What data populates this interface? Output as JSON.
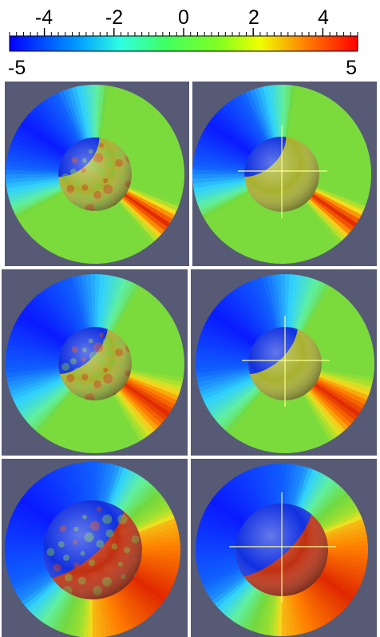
{
  "colorbar": {
    "tick_labels": [
      "-4",
      "-2",
      "0",
      "2",
      "4"
    ],
    "tick_values": [
      -4,
      -2,
      0,
      2,
      4
    ],
    "min_label": "-5",
    "max_label": "5",
    "min": -5,
    "max": 5,
    "colormap": [
      "#0000ff",
      "#00c8ff",
      "#00ff40",
      "#a0ff00",
      "#ffff00",
      "#ff8000",
      "#ff0000"
    ]
  },
  "panels": [
    {
      "id": "row1-left",
      "crosshair": false,
      "blue_extent": 0.35,
      "red_extent": 0.05,
      "sphere": "mottled"
    },
    {
      "id": "row1-right",
      "crosshair": true,
      "blue_extent": 0.35,
      "red_extent": 0.05,
      "sphere": "smooth"
    },
    {
      "id": "row2-left",
      "crosshair": false,
      "blue_extent": 0.55,
      "red_extent": 0.15,
      "sphere": "mottled"
    },
    {
      "id": "row2-right",
      "crosshair": true,
      "blue_extent": 0.55,
      "red_extent": 0.15,
      "sphere": "smooth"
    },
    {
      "id": "row3-left",
      "crosshair": false,
      "blue_extent": 0.9,
      "red_extent": 0.9,
      "sphere": "mottled"
    },
    {
      "id": "row3-right",
      "crosshair": true,
      "blue_extent": 0.9,
      "red_extent": 0.9,
      "sphere": "smooth"
    }
  ],
  "colors": {
    "background": "#565a74",
    "field_green": "#6ed240",
    "field_blue": "#1020ff",
    "field_red": "#e03000",
    "crosshair": "#ffff90"
  }
}
